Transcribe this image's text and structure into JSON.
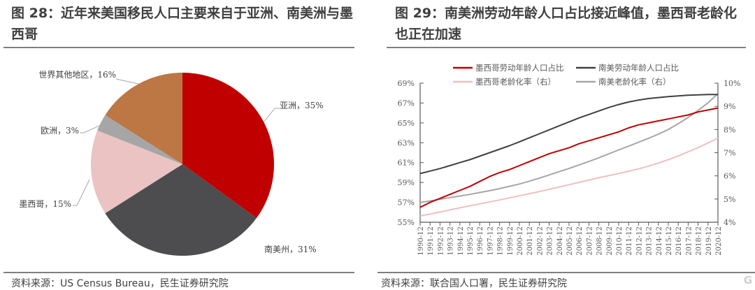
{
  "left": {
    "title": "图 28：近年来美国移民人口主要来自于亚洲、南美洲与墨西哥",
    "source": "资料来源：US Census Bureau，民生证券研究院"
  },
  "right": {
    "title": "图 29：南美洲劳动年龄人口占比接近峰值，墨西哥老龄化也正在加速",
    "source": "资料来源：联合国人口署，民生证券研究院"
  },
  "watermark": "格隆汇",
  "chart_data": [
    {
      "type": "pie",
      "start": "top",
      "direction": "clockwise",
      "slices": [
        {
          "label": "亚洲，35%",
          "name": "亚洲",
          "value": 35,
          "color": "#C00000"
        },
        {
          "label": "南美州，31%",
          "name": "南美州",
          "value": 31,
          "color": "#4D4D4F"
        },
        {
          "label": "墨西哥，15%",
          "name": "墨西哥",
          "value": 15,
          "color": "#EBC3C3"
        },
        {
          "label": "欧洲，3%",
          "name": "欧洲",
          "value": 3,
          "color": "#A6A6A6"
        },
        {
          "label": "世界其他地区，16%",
          "name": "世界其他地区",
          "value": 16,
          "color": "#BC7745"
        }
      ]
    },
    {
      "type": "line",
      "legend_position": "top",
      "grid": false,
      "x": [
        "1990-12",
        "1991-12",
        "1992-12",
        "1993-12",
        "1994-12",
        "1995-12",
        "1996-12",
        "1997-12",
        "1998-12",
        "1999-12",
        "2000-12",
        "2001-12",
        "2002-12",
        "2003-12",
        "2004-12",
        "2005-12",
        "2006-12",
        "2007-12",
        "2008-12",
        "2009-12",
        "2010-12",
        "2011-12",
        "2012-12",
        "2013-12",
        "2014-12",
        "2015-12",
        "2016-12",
        "2017-12",
        "2018-12",
        "2019-12",
        "2020-12"
      ],
      "y_left": {
        "ylim": [
          55,
          69
        ],
        "ticks": [
          "55%",
          "57%",
          "59%",
          "61%",
          "63%",
          "65%",
          "67%",
          "69%"
        ]
      },
      "y_right": {
        "ylim": [
          4,
          10
        ],
        "ticks": [
          "4%",
          "5%",
          "6%",
          "7%",
          "8%",
          "9%",
          "10%"
        ]
      },
      "series": [
        {
          "name": "墨西哥劳动年龄人口占比",
          "axis": "left",
          "color": "#C00000",
          "values": [
            56.5,
            57.0,
            57.4,
            57.8,
            58.2,
            58.6,
            59.1,
            59.6,
            60.0,
            60.3,
            60.7,
            61.1,
            61.5,
            61.9,
            62.2,
            62.5,
            62.9,
            63.2,
            63.5,
            63.8,
            64.1,
            64.5,
            64.8,
            65.0,
            65.2,
            65.4,
            65.6,
            65.8,
            66.1,
            66.3,
            66.5
          ]
        },
        {
          "name": "南美劳动年龄人口占比",
          "axis": "left",
          "color": "#404040",
          "values": [
            59.9,
            60.15,
            60.4,
            60.7,
            61.0,
            61.3,
            61.65,
            62.0,
            62.35,
            62.7,
            63.1,
            63.5,
            63.9,
            64.3,
            64.7,
            65.1,
            65.5,
            65.85,
            66.2,
            66.55,
            66.85,
            67.1,
            67.3,
            67.45,
            67.55,
            67.65,
            67.72,
            67.78,
            67.82,
            67.85,
            67.85
          ]
        },
        {
          "name": "墨西哥老龄化率（右）",
          "axis": "right",
          "color": "#F0BFBF",
          "values": [
            4.27,
            4.35,
            4.44,
            4.53,
            4.62,
            4.71,
            4.79,
            4.88,
            4.96,
            5.05,
            5.14,
            5.23,
            5.32,
            5.42,
            5.52,
            5.62,
            5.72,
            5.82,
            5.92,
            6.01,
            6.1,
            6.2,
            6.3,
            6.42,
            6.55,
            6.7,
            6.86,
            7.04,
            7.22,
            7.42,
            7.63
          ]
        },
        {
          "name": "南美老龄化率（右）",
          "axis": "right",
          "color": "#A6A6A6",
          "values": [
            4.85,
            4.92,
            4.99,
            5.06,
            5.13,
            5.2,
            5.28,
            5.36,
            5.45,
            5.55,
            5.65,
            5.77,
            5.9,
            6.04,
            6.18,
            6.32,
            6.47,
            6.62,
            6.78,
            6.95,
            7.12,
            7.28,
            7.45,
            7.62,
            7.8,
            8.0,
            8.25,
            8.52,
            8.82,
            9.15,
            9.55
          ]
        }
      ]
    }
  ]
}
